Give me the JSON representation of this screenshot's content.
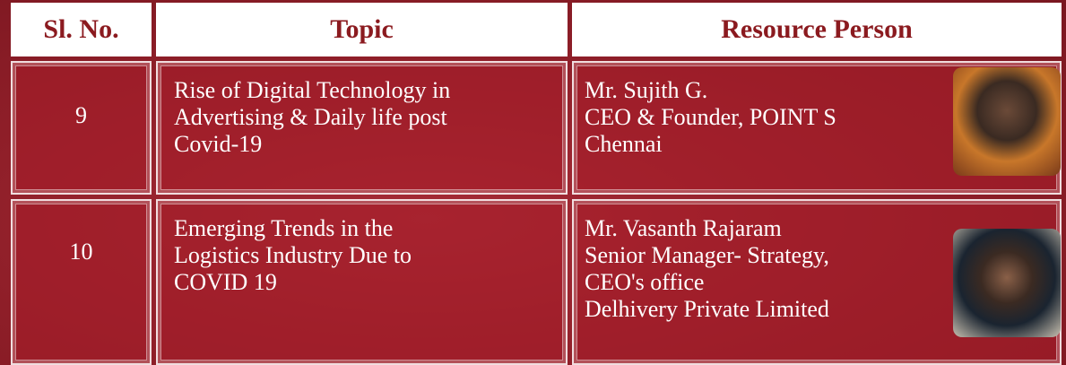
{
  "table": {
    "header": [
      "Sl. No.",
      "Topic",
      "Resource Person"
    ],
    "rows": [
      {
        "number": 9,
        "topic": [
          "Rise of Digital Technology in",
          "Advertising & Daily life post",
          "Covid-19"
        ],
        "person": [
          "Mr. Sujith G.",
          "CEO & Founder, POINT S",
          "Chennai"
        ]
      },
      {
        "number": 10,
        "topic": [
          "Emerging Trends in the",
          "Logistics Industry Due to",
          "COVID 19"
        ],
        "person": [
          "Mr. Vasanth Rajaram",
          "Senior Manager- Strategy,",
          "CEO's office",
          "Delhivery Private Limited"
        ]
      }
    ]
  }
}
